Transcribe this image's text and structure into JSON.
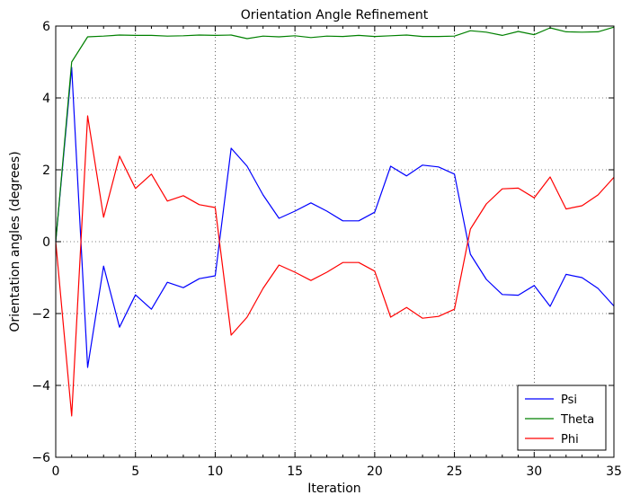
{
  "chart_data": {
    "type": "line",
    "title": "Orientation Angle Refinement",
    "xlabel": "Iteration",
    "ylabel": "Orientation angles (degrees)",
    "xlim": [
      0,
      35
    ],
    "ylim": [
      -6,
      6
    ],
    "xticks": [
      0,
      5,
      10,
      15,
      20,
      25,
      30,
      35
    ],
    "yticks": [
      -6,
      -4,
      -2,
      0,
      2,
      4,
      6
    ],
    "xtick_labels": [
      "0",
      "5",
      "10",
      "15",
      "20",
      "25",
      "30",
      "35"
    ],
    "ytick_labels": [
      "−6",
      "−4",
      "−2",
      "0",
      "2",
      "4",
      "6"
    ],
    "grid": true,
    "legend_position": "lower-right",
    "x": [
      0,
      1,
      2,
      3,
      4,
      5,
      6,
      7,
      8,
      9,
      10,
      11,
      12,
      13,
      14,
      15,
      16,
      17,
      18,
      19,
      20,
      21,
      22,
      23,
      24,
      25,
      26,
      27,
      28,
      29,
      30,
      31,
      32,
      33,
      34,
      35
    ],
    "series": [
      {
        "name": "Psi",
        "color": "#0000ff",
        "values": [
          0,
          4.85,
          -3.5,
          -0.68,
          -2.38,
          -1.48,
          -1.88,
          -1.13,
          -1.28,
          -1.03,
          -0.95,
          2.6,
          2.1,
          1.3,
          0.65,
          0.85,
          1.08,
          0.85,
          0.58,
          0.58,
          0.82,
          2.1,
          1.83,
          2.13,
          2.08,
          1.88,
          -0.35,
          -1.05,
          -1.47,
          -1.49,
          -1.22,
          -1.8,
          -0.91,
          -1.0,
          -1.3,
          -1.79
        ]
      },
      {
        "name": "Theta",
        "color": "#008000",
        "values": [
          0,
          5.0,
          5.7,
          5.72,
          5.75,
          5.74,
          5.74,
          5.72,
          5.73,
          5.75,
          5.74,
          5.75,
          5.65,
          5.72,
          5.7,
          5.73,
          5.68,
          5.72,
          5.71,
          5.74,
          5.71,
          5.73,
          5.75,
          5.71,
          5.71,
          5.72,
          5.87,
          5.83,
          5.74,
          5.85,
          5.76,
          5.95,
          5.84,
          5.83,
          5.84,
          5.97
        ]
      },
      {
        "name": "Phi",
        "color": "#ff0000",
        "values": [
          0,
          -4.85,
          3.5,
          0.68,
          2.38,
          1.48,
          1.88,
          1.13,
          1.28,
          1.03,
          0.95,
          -2.6,
          -2.1,
          -1.3,
          -0.65,
          -0.85,
          -1.08,
          -0.85,
          -0.58,
          -0.58,
          -0.82,
          -2.1,
          -1.83,
          -2.13,
          -2.08,
          -1.88,
          0.35,
          1.05,
          1.47,
          1.49,
          1.22,
          1.8,
          0.91,
          1.0,
          1.3,
          1.79
        ]
      }
    ]
  }
}
